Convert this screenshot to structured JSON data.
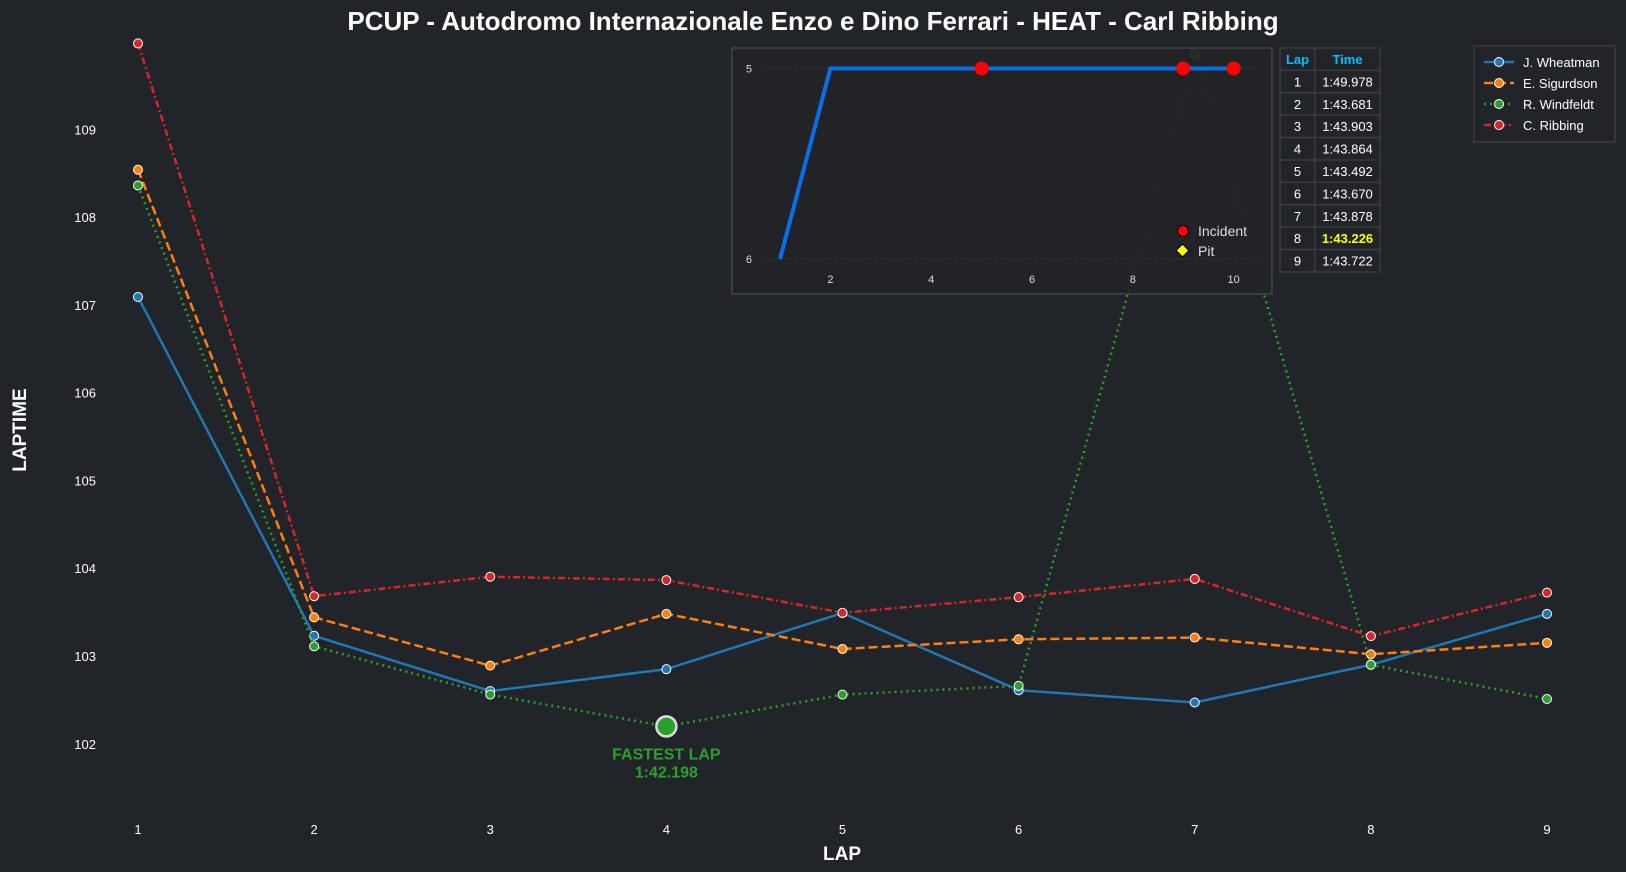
{
  "chart_data": {
    "type": "line",
    "title": "PCUP - Autodromo Internazionale Enzo e Dino Ferrari - HEAT - Carl Ribbing",
    "xlabel": "LAP",
    "ylabel": "LAPTIME",
    "x": [
      1,
      2,
      3,
      4,
      5,
      6,
      7,
      8,
      9
    ],
    "ylim": [
      101.2,
      110.0
    ],
    "yticks": [
      102,
      103,
      104,
      105,
      106,
      107,
      108,
      109
    ],
    "grid": false,
    "legend": "top-right",
    "series": [
      {
        "name": "J. Wheatman",
        "color": "#1f77b4",
        "dash": "solid",
        "values": [
          107.09,
          103.23,
          102.6,
          102.85,
          103.49,
          102.61,
          102.47,
          102.9,
          103.48
        ]
      },
      {
        "name": "E. Sigurdson",
        "color": "#ff7f0e",
        "dash": "dashed",
        "values": [
          108.54,
          103.44,
          102.89,
          103.48,
          103.08,
          103.19,
          103.21,
          103.02,
          103.15
        ]
      },
      {
        "name": "R. Windfeldt",
        "color": "#2ca02c",
        "dash": "dotted",
        "values": [
          108.36,
          103.11,
          102.56,
          102.198,
          102.56,
          102.66,
          109.86,
          102.9,
          102.51
        ]
      },
      {
        "name": "C. Ribbing",
        "color": "#d62728",
        "dash": "dashdot",
        "values": [
          109.978,
          103.681,
          103.903,
          103.864,
          103.492,
          103.67,
          103.878,
          103.226,
          103.722
        ]
      }
    ],
    "annotation": {
      "label": "FASTEST LAP",
      "time": "1:42.198",
      "lap": 4,
      "value": 102.198,
      "color": "#2ca02c"
    },
    "inset": {
      "type": "line",
      "x": [
        1,
        2,
        3,
        4,
        5,
        6,
        7,
        8,
        9,
        10
      ],
      "position": [
        6,
        5,
        5,
        5,
        5,
        5,
        5,
        5,
        5,
        5
      ],
      "xticks": [
        2,
        4,
        6,
        8,
        10
      ],
      "yticks": [
        5,
        6
      ],
      "inverted_y": true,
      "color": "#0a6ee8",
      "incident_laps": [
        5,
        9,
        10
      ],
      "legend": [
        {
          "label": "Incident",
          "color": "#ff0000",
          "marker": "circle"
        },
        {
          "label": "Pit",
          "color": "#ffff00",
          "marker": "diamond"
        }
      ]
    },
    "table": {
      "headers": [
        "Lap",
        "Time"
      ],
      "header_color": "#00bfff",
      "highlight_color": "#ffff00",
      "highlight_row": 8,
      "rows": [
        [
          "1",
          "1:49.978"
        ],
        [
          "2",
          "1:43.681"
        ],
        [
          "3",
          "1:43.903"
        ],
        [
          "4",
          "1:43.864"
        ],
        [
          "5",
          "1:43.492"
        ],
        [
          "6",
          "1:43.670"
        ],
        [
          "7",
          "1:43.878"
        ],
        [
          "8",
          "1:43.226"
        ],
        [
          "9",
          "1:43.722"
        ]
      ]
    }
  }
}
